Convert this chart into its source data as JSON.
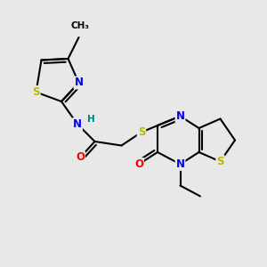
{
  "bg_color": "#e8e8e8",
  "bond_color": "#000000",
  "bond_width": 1.5,
  "atom_colors": {
    "N": "#0000ff",
    "S": "#b8b800",
    "O": "#ff0000",
    "H": "#008080",
    "C": "#000000"
  },
  "font_size": 8.5,
  "font_size_small": 7.5,
  "xlim": [
    0,
    10
  ],
  "ylim": [
    0,
    10
  ],
  "figsize": [
    3.0,
    3.0
  ],
  "dpi": 100
}
